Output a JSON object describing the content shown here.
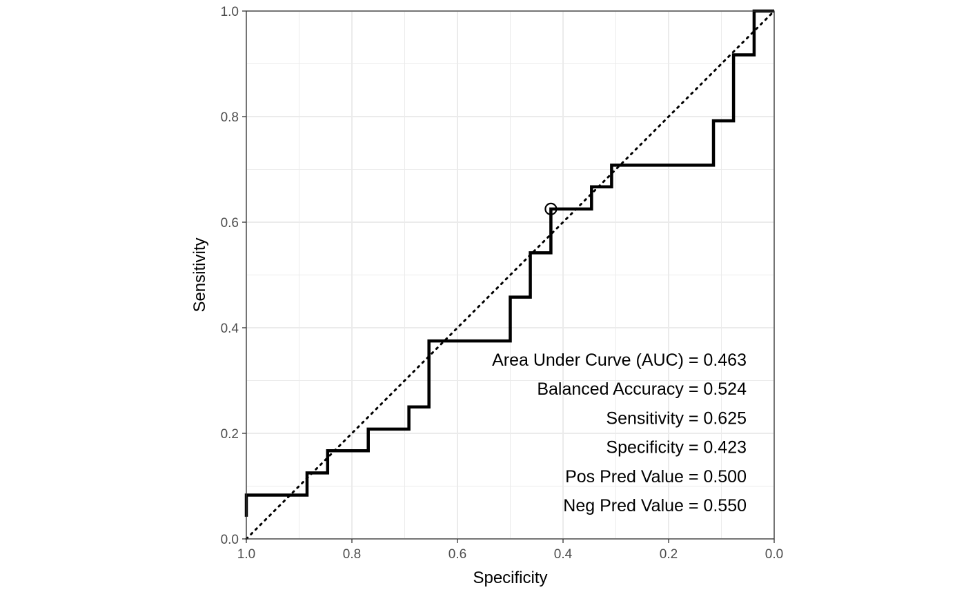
{
  "chart_data": {
    "type": "line",
    "xlabel": "Specificity",
    "ylabel": "Sensitivity",
    "xlim": [
      1.0,
      0.0
    ],
    "ylim": [
      0.0,
      1.0
    ],
    "x_reversed": true,
    "grid": true,
    "xticks": [
      1.0,
      0.8,
      0.6,
      0.4,
      0.2,
      0.0
    ],
    "xtick_labels": [
      "1.0",
      "0.8",
      "0.6",
      "0.4",
      "0.2",
      "0.0"
    ],
    "yticks": [
      0.0,
      0.2,
      0.4,
      0.6,
      0.8,
      1.0
    ],
    "ytick_labels": [
      "0.0",
      "0.2",
      "0.4",
      "0.6",
      "0.8",
      "1.0"
    ],
    "series": [
      {
        "style": "solid-step",
        "color": "#000000",
        "points": [
          [
            1.0,
            0.042
          ],
          [
            1.0,
            0.083
          ],
          [
            0.885,
            0.083
          ],
          [
            0.885,
            0.125
          ],
          [
            0.846,
            0.125
          ],
          [
            0.846,
            0.167
          ],
          [
            0.769,
            0.167
          ],
          [
            0.769,
            0.208
          ],
          [
            0.692,
            0.208
          ],
          [
            0.692,
            0.25
          ],
          [
            0.654,
            0.25
          ],
          [
            0.654,
            0.375
          ],
          [
            0.5,
            0.375
          ],
          [
            0.5,
            0.458
          ],
          [
            0.462,
            0.458
          ],
          [
            0.462,
            0.542
          ],
          [
            0.423,
            0.542
          ],
          [
            0.423,
            0.625
          ],
          [
            0.346,
            0.625
          ],
          [
            0.346,
            0.667
          ],
          [
            0.308,
            0.667
          ],
          [
            0.308,
            0.708
          ],
          [
            0.115,
            0.708
          ],
          [
            0.115,
            0.792
          ],
          [
            0.077,
            0.792
          ],
          [
            0.077,
            0.917
          ],
          [
            0.038,
            0.917
          ],
          [
            0.038,
            1.0
          ],
          [
            0.0,
            1.0
          ]
        ]
      },
      {
        "style": "dotted-diagonal",
        "color": "#000000",
        "points": [
          [
            1.0,
            0.0
          ],
          [
            0.0,
            1.0
          ]
        ]
      }
    ],
    "marker": {
      "x": 0.423,
      "y": 0.625,
      "shape": "open-circle"
    },
    "annotations": [
      "Area Under Curve (AUC) = 0.463",
      "Balanced Accuracy = 0.524",
      "Sensitivity = 0.625",
      "Specificity = 0.423",
      "Pos Pred Value = 0.500",
      "Neg Pred Value = 0.550"
    ]
  }
}
